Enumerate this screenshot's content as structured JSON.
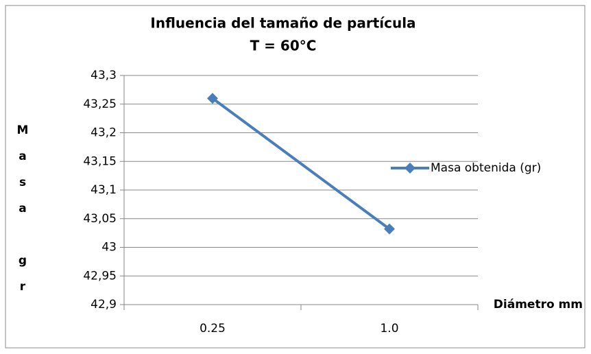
{
  "chart_data": {
    "type": "line",
    "title": "Influencia del tamaño de partícula",
    "subtitle": "T = 60°C",
    "x_label": "Diámetro mm",
    "y_label": "Masa gr",
    "categories": [
      "0.25",
      "1.0"
    ],
    "series": [
      {
        "name": "Masa obtenida (gr)",
        "color": "#4a7ebb",
        "values": [
          43.26,
          43.032
        ]
      }
    ],
    "ylim": [
      42.9,
      43.3
    ],
    "yticks": [
      {
        "value": 42.9,
        "label": "42,9"
      },
      {
        "value": 42.95,
        "label": "42,95"
      },
      43,
      {
        "value": 43.05,
        "label": "43,05"
      },
      {
        "value": 43.1,
        "label": "43,1"
      },
      {
        "value": 43.15,
        "label": "43,15"
      },
      {
        "value": 43.2,
        "label": "43,2"
      },
      {
        "value": 43.25,
        "label": "43,25"
      },
      {
        "value": 43.3,
        "label": "43,3"
      }
    ],
    "grid": true,
    "legend": "right"
  }
}
